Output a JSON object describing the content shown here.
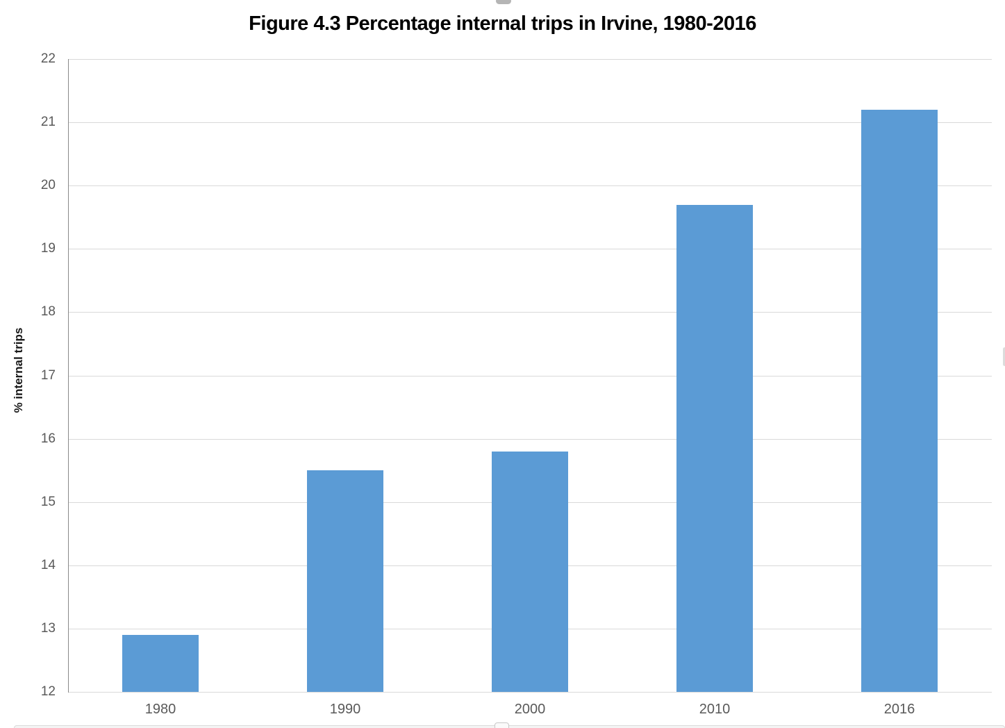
{
  "chart_data": {
    "type": "bar",
    "title": "Figure 4.3 Percentage internal trips in Irvine, 1980-2016",
    "categories": [
      "1980",
      "1990",
      "2000",
      "2010",
      "2016"
    ],
    "values": [
      12.9,
      15.5,
      15.8,
      19.7,
      21.2
    ],
    "xlabel": "",
    "ylabel": "% internal trips",
    "ylim": [
      12,
      22
    ],
    "ytick_step": 1,
    "grid": true,
    "legend": false,
    "bar_color": "#5b9bd5",
    "gridline_color": "#d9d9d9",
    "axis_line_color": "#898989",
    "tick_label_color": "#595959"
  }
}
